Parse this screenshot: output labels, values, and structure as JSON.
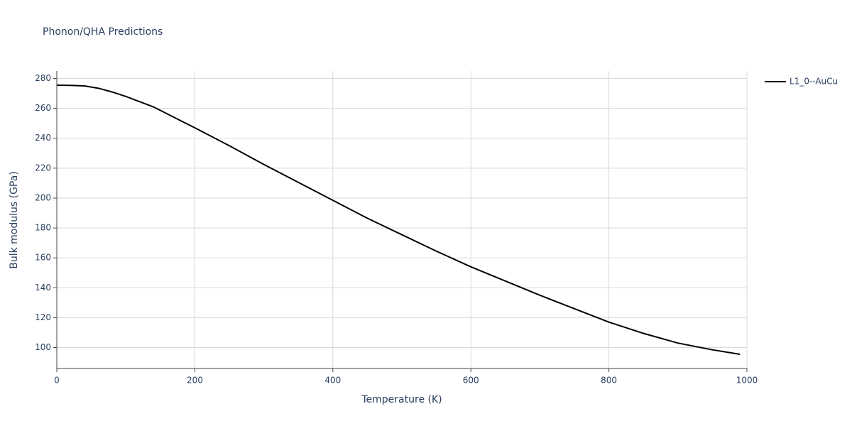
{
  "chart_data": {
    "type": "line",
    "title": "Phonon/QHA Predictions",
    "x_label": "Temperature (K)",
    "y_label": "Bulk modulus (GPa)",
    "x": [
      0,
      20,
      40,
      60,
      80,
      100,
      140,
      200,
      250,
      300,
      350,
      400,
      450,
      500,
      550,
      600,
      650,
      700,
      750,
      800,
      850,
      900,
      950,
      990
    ],
    "series": [
      {
        "name": "L1_0--AuCu",
        "color": "#000000",
        "values": [
          275.5,
          275.4,
          275,
          273.5,
          271,
          268,
          261,
          247,
          235,
          222.5,
          210.5,
          198.5,
          186.5,
          175.5,
          164.5,
          154,
          144.5,
          135,
          126,
          117,
          109.5,
          103,
          98.5,
          95.5
        ]
      }
    ],
    "xlim": [
      0,
      1000
    ],
    "xticks": [
      0,
      200,
      400,
      600,
      800,
      1000
    ],
    "ylim": [
      86,
      285
    ],
    "yticks": [
      100,
      120,
      140,
      160,
      180,
      200,
      220,
      240,
      260,
      280
    ],
    "grid": true,
    "legend": "top-right"
  }
}
